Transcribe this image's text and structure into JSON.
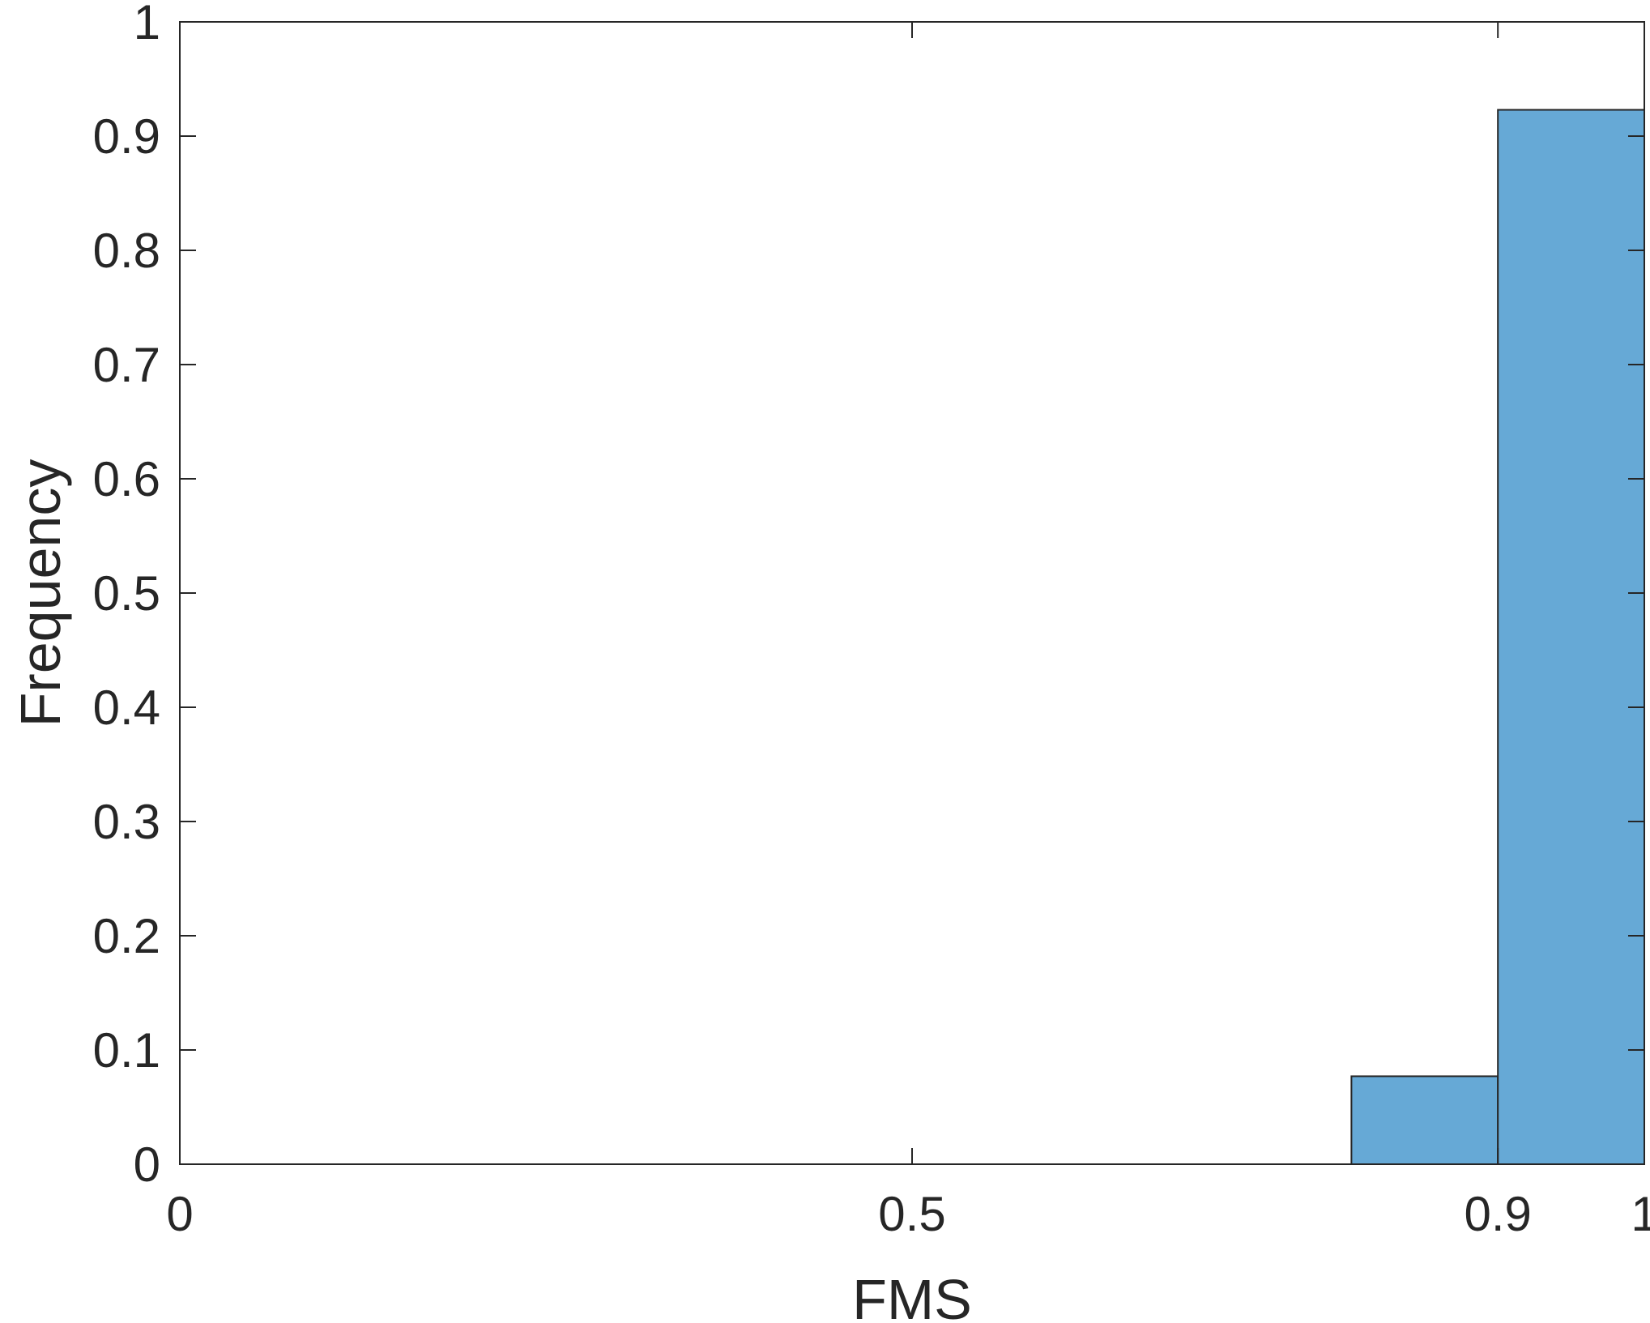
{
  "chart_data": {
    "type": "bar",
    "title": "",
    "xlabel": "FMS",
    "ylabel": "Frequency",
    "xlim": [
      0,
      1
    ],
    "ylim": [
      0,
      1
    ],
    "xticks": [
      0,
      0.5,
      0.9,
      1
    ],
    "xtick_labels": [
      "0",
      "0.5",
      "0.9",
      "1"
    ],
    "yticks": [
      0,
      0.1,
      0.2,
      0.3,
      0.4,
      0.5,
      0.6,
      0.7,
      0.8,
      0.9,
      1
    ],
    "ytick_labels": [
      "0",
      "0.1",
      "0.2",
      "0.3",
      "0.4",
      "0.5",
      "0.6",
      "0.7",
      "0.8",
      "0.9",
      "1"
    ],
    "bins": [
      {
        "x0": 0.8,
        "x1": 0.9,
        "value": 0.077
      },
      {
        "x0": 0.9,
        "x1": 1.0,
        "value": 0.923
      }
    ],
    "bar_color": "#66a9d6",
    "edge_color": "#262626",
    "grid": false,
    "legend": "none"
  }
}
